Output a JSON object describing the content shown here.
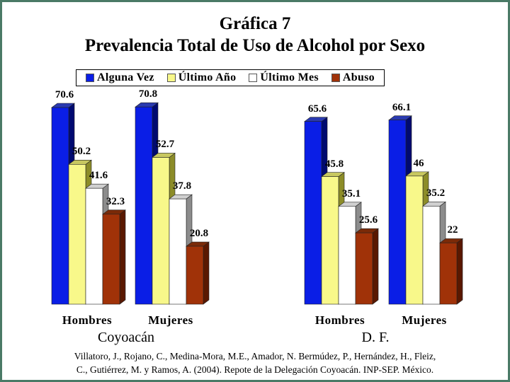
{
  "title": {
    "line1": "Gráfica 7",
    "line2": "Prevalencia Total de Uso de Alcohol por Sexo"
  },
  "source": {
    "line1": "Villatoro, J., Rojano, C., Medina-Mora, M.E., Amador, N. Bermúdez, P., Hernández, H., Fleiz,",
    "line2": "C., Gutiérrez, M. y Ramos, A. (2004). Repote de la Delegación Coyoacán. INP-SEP. México."
  },
  "chart_data": {
    "type": "bar",
    "title": "Gráfica 7 Prevalencia Total de Uso de Alcohol por Sexo",
    "legend_position": "top",
    "grid": false,
    "ylim": [
      0,
      75
    ],
    "series": [
      {
        "name": "Alguna Vez",
        "color": "#0a1ee6",
        "values": [
          70.6,
          70.8,
          65.6,
          66.1
        ]
      },
      {
        "name": "Último Año",
        "color": "#f8f88a",
        "values": [
          50.2,
          52.7,
          45.8,
          46
        ]
      },
      {
        "name": "Último Mes",
        "color": "#ffffff",
        "values": [
          41.6,
          37.8,
          35.1,
          35.2
        ]
      },
      {
        "name": "Abuso",
        "color": "#a03208",
        "values": [
          32.3,
          20.8,
          25.6,
          22
        ]
      }
    ],
    "categories": [
      "Hombres",
      "Mujeres",
      "Hombres",
      "Mujeres"
    ],
    "groups": [
      {
        "label": "Coyoacán",
        "categories": [
          0,
          1
        ]
      },
      {
        "label": "D. F.",
        "categories": [
          2,
          3
        ]
      }
    ],
    "value_labels": [
      [
        "70.6",
        "70.8",
        "65.6",
        "66.1"
      ],
      [
        "50.2",
        "52.7",
        "45.8",
        "46"
      ],
      [
        "41.6",
        "37.8",
        "35.1",
        "35.2"
      ],
      [
        "32.3",
        "20.8",
        "25.6",
        "22"
      ]
    ]
  }
}
